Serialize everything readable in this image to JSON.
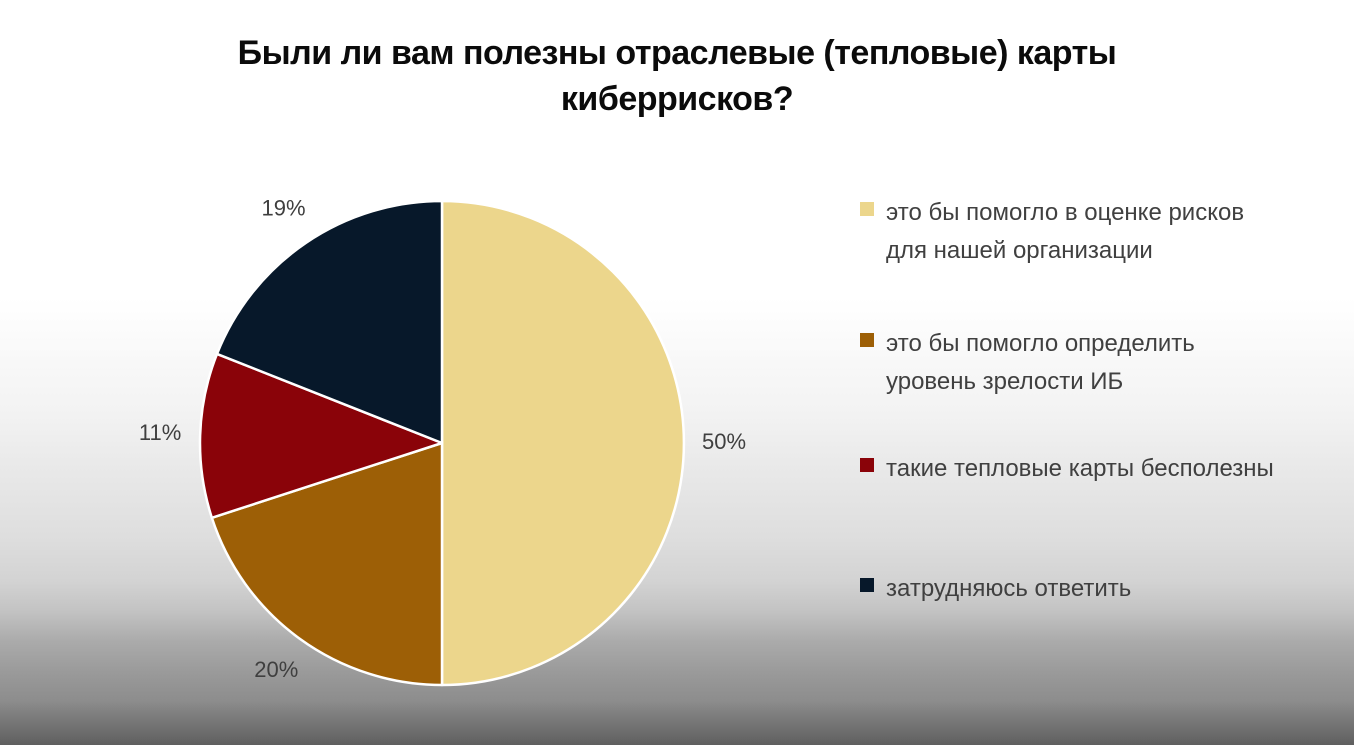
{
  "header": {
    "title_display": "Были ли вам полезны отраслевые (тепловые) карты\nкиберрисков?"
  },
  "chart_data": {
    "type": "pie",
    "title": "Были ли вам полезны отраслевые (тепловые) карты киберрисков?",
    "categories": [
      "это бы помогло в оценке рисков для нашей организации",
      "это бы помогло определить уровень зрелости ИБ",
      "такие тепловые карты бесполезны",
      "затрудняюсь ответить"
    ],
    "values": [
      50,
      20,
      11,
      19
    ],
    "slice_labels": [
      "50%",
      "20%",
      "11%",
      "19%"
    ],
    "colors": [
      "#ECD68C",
      "#9D5F06",
      "#8A0309",
      "#07182A"
    ],
    "slice_border_color": "#FFFFFF",
    "start_angle_deg": 0,
    "direction": "clockwise",
    "label_position": "outside",
    "legend_position": "right",
    "label_color": "#3F3F3F"
  },
  "legend": {
    "items": [
      {
        "label": "это бы помогло в оценке рисков\nдля нашей организации",
        "color": "#ECD68C"
      },
      {
        "label": "это бы помогло определить\nуровень зрелости ИБ",
        "color": "#9D5F06"
      },
      {
        "label": "такие тепловые карты бесполезны",
        "color": "#8A0309"
      },
      {
        "label": "затрудняюсь ответить",
        "color": "#07182A"
      }
    ]
  },
  "style": {
    "background_top": "#FFFFFF",
    "background_bottom": "#5F5F5F",
    "title_color": "#0B0B0B"
  }
}
